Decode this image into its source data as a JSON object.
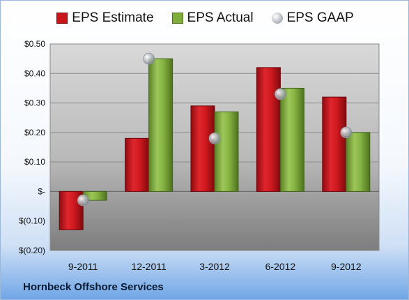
{
  "company": "Hornbeck Offshore Services",
  "legend": {
    "estimate": "EPS Estimate",
    "actual": "EPS Actual",
    "gaap": "EPS GAAP"
  },
  "colors": {
    "estimate": "#c8151c",
    "actual": "#7fae3b",
    "gaap": "#b8bcc4"
  },
  "chart_data": {
    "type": "bar",
    "categories": [
      "9-2011",
      "12-2011",
      "3-2012",
      "6-2012",
      "9-2012"
    ],
    "series": [
      {
        "name": "EPS Estimate",
        "values": [
          -0.13,
          0.18,
          0.29,
          0.42,
          0.32
        ]
      },
      {
        "name": "EPS Actual",
        "values": [
          -0.03,
          0.45,
          0.27,
          0.35,
          0.2
        ]
      },
      {
        "name": "EPS GAAP",
        "values": [
          -0.03,
          0.45,
          0.18,
          0.33,
          0.2
        ],
        "style": "marker"
      }
    ],
    "yticks": [
      0.5,
      0.4,
      0.3,
      0.2,
      0.1,
      0,
      -0.1,
      -0.2
    ],
    "ytick_labels": [
      "$0.50",
      "$0.40",
      "$0.30",
      "$0.20",
      "$0.10",
      "$-",
      "$(0.10)",
      "$(0.20)"
    ],
    "ylim": [
      -0.2,
      0.5
    ],
    "grid": true,
    "legend_position": "top"
  }
}
